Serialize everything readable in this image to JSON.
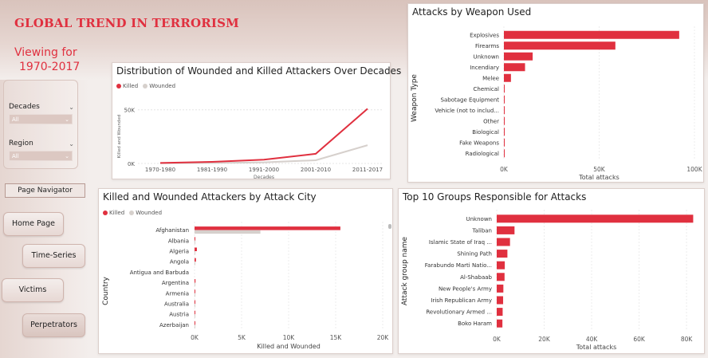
{
  "header": {
    "title": "GLOBAL TREND IN TERRORISM",
    "viewing_label": "Viewing for",
    "years": "1970-2017"
  },
  "filters": {
    "decades": {
      "label": "Decades",
      "value": "All"
    },
    "region": {
      "label": "Region",
      "value": "All"
    }
  },
  "nav": {
    "page_navigator": "Page Navigator",
    "home": "Home Page",
    "timeseries": "Time-Series",
    "victims": "Victims",
    "perpetrators": "Perpetrators"
  },
  "colors": {
    "killed": "#e0303f",
    "wounded": "#d6d0cc",
    "accent": "#e0303f"
  },
  "chart_data": [
    {
      "id": "decades",
      "type": "line",
      "title": "Distribution of Wounded and Killed Attackers Over Decades",
      "xlabel": "Decades",
      "ylabel": "Killed and Wounded",
      "categories": [
        "1970-1980",
        "1981-1990",
        "1991-2000",
        "2001-2010",
        "2011-2017"
      ],
      "series": [
        {
          "name": "Killed",
          "values": [
            500,
            1500,
            3500,
            9000,
            51000
          ]
        },
        {
          "name": "Wounded",
          "values": [
            200,
            500,
            1000,
            3000,
            17000
          ]
        }
      ],
      "ylim": [
        0,
        55000
      ],
      "ytick_values": [
        0,
        50000
      ],
      "ytick_labels": [
        "0K",
        "50K"
      ]
    },
    {
      "id": "weapons",
      "type": "bar",
      "orientation": "horizontal",
      "title": "Attacks by Weapon Used",
      "ylabel": "Weapon Type",
      "xlabel": "Total attacks",
      "categories": [
        "Explosives",
        "Firearms",
        "Unknown",
        "Incendiary",
        "Melee",
        "Chemical",
        "Sabotage Equipment",
        "Vehicle (not to includ...",
        "Other",
        "Biological",
        "Fake Weapons",
        "Radiological"
      ],
      "values": [
        92000,
        58500,
        15100,
        11100,
        3700,
        320,
        140,
        140,
        115,
        35,
        33,
        14
      ],
      "xlim": [
        0,
        100000
      ],
      "xtick_values": [
        0,
        50000,
        100000
      ],
      "xtick_labels": [
        "0K",
        "50K",
        "100K"
      ]
    },
    {
      "id": "cities",
      "type": "bar",
      "orientation": "horizontal",
      "title": "Killed and Wounded Attackers by Attack City",
      "ylabel": "Country",
      "xlabel": "Killed and Wounded",
      "categories": [
        "Afghanistan",
        "Albania",
        "Algeria",
        "Angola",
        "Antigua and Barbuda",
        "Argentina",
        "Armenia",
        "Australia",
        "Austria",
        "Azerbaijan"
      ],
      "series": [
        {
          "name": "Killed",
          "values": [
            15500,
            40,
            250,
            150,
            0,
            100,
            20,
            25,
            15,
            30
          ]
        },
        {
          "name": "Wounded",
          "values": [
            7000,
            10,
            60,
            40,
            0,
            30,
            10,
            10,
            5,
            20
          ]
        }
      ],
      "xlim": [
        0,
        20000
      ],
      "xtick_values": [
        0,
        5000,
        10000,
        15000,
        20000
      ],
      "xtick_labels": [
        "0K",
        "5K",
        "10K",
        "15K",
        "20K"
      ]
    },
    {
      "id": "groups",
      "type": "bar",
      "orientation": "horizontal",
      "title": "Top 10 Groups Responsible for Attacks",
      "ylabel": "Attack group name",
      "xlabel": "Total attacks",
      "categories": [
        "Unknown",
        "Taliban",
        "Islamic State of Iraq ...",
        "Shining Path",
        "Farabundo Marti Natio...",
        "Al-Shabaab",
        "New People's Army",
        "Irish Republican Army",
        "Revolutionary Armed ...",
        "Boko Haram"
      ],
      "values": [
        82800,
        7500,
        5600,
        4500,
        3400,
        3300,
        2800,
        2700,
        2500,
        2400
      ],
      "xlim": [
        0,
        84000
      ],
      "xtick_values": [
        0,
        20000,
        40000,
        60000,
        80000
      ],
      "xtick_labels": [
        "0K",
        "20K",
        "40K",
        "60K",
        "80K"
      ]
    }
  ]
}
